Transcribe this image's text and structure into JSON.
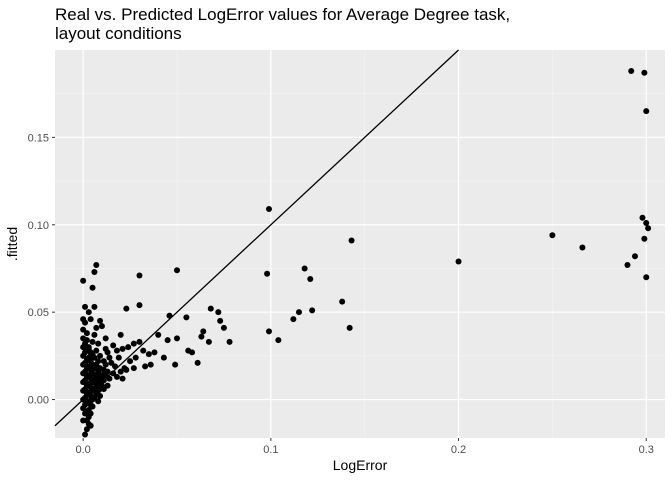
{
  "chart_data": {
    "type": "scatter",
    "title_line1": "Real vs. Predicted LogError values for Average Degree task,",
    "title_line2": "layout conditions",
    "xlabel": "LogError",
    "ylabel": ".fitted",
    "xlim": [
      -0.015,
      0.31
    ],
    "ylim": [
      -0.022,
      0.2
    ],
    "x_ticks": [
      0.0,
      0.1,
      0.2,
      0.3
    ],
    "x_tick_labels": [
      "0.0",
      "0.1",
      "0.2",
      "0.3"
    ],
    "y_ticks": [
      0.0,
      0.05,
      0.1,
      0.15
    ],
    "y_tick_labels": [
      "0.00",
      "0.05",
      "0.10",
      "0.15"
    ],
    "grid": true,
    "colors": {
      "panel": "#ebebeb",
      "grid_major": "#ffffff",
      "point": "#000000",
      "line": "#000000"
    },
    "reference_line": {
      "slope": 1,
      "intercept": 0
    },
    "points": [
      [
        0.292,
        0.188
      ],
      [
        0.299,
        0.187
      ],
      [
        0.3,
        0.165
      ],
      [
        0.099,
        0.109
      ],
      [
        0.298,
        0.104
      ],
      [
        0.3,
        0.101
      ],
      [
        0.301,
        0.098
      ],
      [
        0.25,
        0.094
      ],
      [
        0.143,
        0.091
      ],
      [
        0.299,
        0.092
      ],
      [
        0.266,
        0.087
      ],
      [
        0.294,
        0.082
      ],
      [
        0.29,
        0.077
      ],
      [
        0.2,
        0.079
      ],
      [
        0.0,
        0.068
      ],
      [
        0.007,
        0.077
      ],
      [
        0.006,
        0.073
      ],
      [
        0.03,
        0.071
      ],
      [
        0.05,
        0.074
      ],
      [
        0.098,
        0.072
      ],
      [
        0.118,
        0.075
      ],
      [
        0.121,
        0.069
      ],
      [
        0.3,
        0.07
      ],
      [
        0.005,
        0.064
      ],
      [
        0.001,
        0.053
      ],
      [
        0.006,
        0.053
      ],
      [
        0.023,
        0.052
      ],
      [
        0.03,
        0.054
      ],
      [
        0.046,
        0.048
      ],
      [
        0.055,
        0.047
      ],
      [
        0.068,
        0.052
      ],
      [
        0.072,
        0.05
      ],
      [
        0.115,
        0.05
      ],
      [
        0.122,
        0.051
      ],
      [
        0.138,
        0.056
      ],
      [
        0.112,
        0.046
      ],
      [
        0.073,
        0.045
      ],
      [
        0.064,
        0.039
      ],
      [
        0.075,
        0.041
      ],
      [
        0.078,
        0.033
      ],
      [
        0.099,
        0.039
      ],
      [
        0.104,
        0.034
      ],
      [
        0.142,
        0.041
      ],
      [
        0.04,
        0.037
      ],
      [
        0.045,
        0.034
      ],
      [
        0.043,
        0.024
      ],
      [
        0.05,
        0.035
      ],
      [
        0.056,
        0.028
      ],
      [
        0.058,
        0.027
      ],
      [
        0.063,
        0.036
      ],
      [
        0.067,
        0.033
      ],
      [
        0.061,
        0.021
      ],
      [
        0.049,
        0.02
      ],
      [
        0.035,
        0.026
      ],
      [
        0.038,
        0.027
      ],
      [
        0.036,
        0.02
      ],
      [
        0.032,
        0.028
      ],
      [
        0.03,
        0.033
      ],
      [
        0.027,
        0.032
      ],
      [
        0.025,
        0.022
      ],
      [
        0.022,
        0.018
      ],
      [
        0.019,
        0.024
      ],
      [
        0.02,
        0.037
      ],
      [
        0.016,
        0.031
      ],
      [
        0.013,
        0.027
      ],
      [
        0.012,
        0.035
      ],
      [
        0.015,
        0.021
      ],
      [
        0.01,
        0.014
      ],
      [
        0.01,
        0.008
      ],
      [
        0.008,
        0.005
      ],
      [
        0.009,
        0.045
      ],
      [
        0.01,
        0.042
      ],
      [
        0.004,
        0.046
      ],
      [
        0.001,
        0.044
      ],
      [
        0.002,
        0.038
      ],
      [
        0.003,
        0.03
      ],
      [
        0.004,
        0.025
      ],
      [
        0.0,
        0.04
      ],
      [
        0.0,
        0.035
      ],
      [
        0.0,
        0.03
      ],
      [
        0.0,
        0.025
      ],
      [
        0.0,
        0.02
      ],
      [
        0.0,
        0.015
      ],
      [
        0.0,
        0.01
      ],
      [
        0.0,
        0.005
      ],
      [
        0.0,
        0.0
      ],
      [
        0.0,
        -0.005
      ],
      [
        0.001,
        0.032
      ],
      [
        0.001,
        0.027
      ],
      [
        0.001,
        0.021
      ],
      [
        0.001,
        0.016
      ],
      [
        0.001,
        0.011
      ],
      [
        0.001,
        0.006
      ],
      [
        0.001,
        0.001
      ],
      [
        0.001,
        -0.003
      ],
      [
        0.001,
        -0.008
      ],
      [
        0.002,
        0.034
      ],
      [
        0.002,
        0.028
      ],
      [
        0.002,
        0.023
      ],
      [
        0.002,
        0.018
      ],
      [
        0.002,
        0.013
      ],
      [
        0.002,
        0.008
      ],
      [
        0.002,
        0.003
      ],
      [
        0.002,
        -0.002
      ],
      [
        0.002,
        -0.007
      ],
      [
        0.002,
        -0.012
      ],
      [
        0.002,
        -0.017
      ],
      [
        0.003,
        0.029
      ],
      [
        0.003,
        0.024
      ],
      [
        0.003,
        0.019
      ],
      [
        0.003,
        0.014
      ],
      [
        0.003,
        0.009
      ],
      [
        0.003,
        0.004
      ],
      [
        0.003,
        -0.001
      ],
      [
        0.003,
        -0.006
      ],
      [
        0.003,
        -0.01
      ],
      [
        0.004,
        0.027
      ],
      [
        0.004,
        0.022
      ],
      [
        0.004,
        0.017
      ],
      [
        0.004,
        0.012
      ],
      [
        0.004,
        0.007
      ],
      [
        0.004,
        0.002
      ],
      [
        0.004,
        -0.003
      ],
      [
        0.004,
        -0.008
      ],
      [
        0.005,
        0.033
      ],
      [
        0.005,
        0.026
      ],
      [
        0.005,
        0.02
      ],
      [
        0.005,
        0.015
      ],
      [
        0.005,
        0.01
      ],
      [
        0.005,
        0.005
      ],
      [
        0.005,
        0.0
      ],
      [
        0.005,
        -0.004
      ],
      [
        0.006,
        0.024
      ],
      [
        0.006,
        0.018
      ],
      [
        0.006,
        0.012
      ],
      [
        0.006,
        0.006
      ],
      [
        0.006,
        0.001
      ],
      [
        0.007,
        0.028
      ],
      [
        0.007,
        0.02
      ],
      [
        0.007,
        0.014
      ],
      [
        0.007,
        0.008
      ],
      [
        0.007,
        0.003
      ],
      [
        0.008,
        0.032
      ],
      [
        0.008,
        0.022
      ],
      [
        0.008,
        0.016
      ],
      [
        0.008,
        0.01
      ],
      [
        0.009,
        0.025
      ],
      [
        0.009,
        0.018
      ],
      [
        0.009,
        0.012
      ],
      [
        0.009,
        0.006
      ],
      [
        0.011,
        0.022
      ],
      [
        0.011,
        0.017
      ],
      [
        0.011,
        0.011
      ],
      [
        0.012,
        0.02
      ],
      [
        0.012,
        0.014
      ],
      [
        0.013,
        0.016
      ],
      [
        0.014,
        0.012
      ],
      [
        0.016,
        0.015
      ],
      [
        0.018,
        0.013
      ],
      [
        0.02,
        0.016
      ],
      [
        0.021,
        0.012
      ],
      [
        0.023,
        0.017
      ],
      [
        0.017,
        0.019
      ],
      [
        0.014,
        0.024
      ],
      [
        0.012,
        0.029
      ],
      [
        0.018,
        0.028
      ],
      [
        0.021,
        0.029
      ],
      [
        0.024,
        0.03
      ],
      [
        0.028,
        0.024
      ],
      [
        0.027,
        0.018
      ],
      [
        0.033,
        0.019
      ],
      [
        0.006,
        0.037
      ],
      [
        0.007,
        0.041
      ],
      [
        0.003,
        0.05
      ],
      [
        0.0,
        -0.012
      ],
      [
        0.001,
        -0.02
      ],
      [
        0.003,
        -0.014
      ],
      [
        0.004,
        -0.015
      ],
      [
        0.0,
        0.046
      ],
      [
        0.011,
        0.006
      ],
      [
        0.013,
        0.008
      ],
      [
        0.009,
        0.002
      ],
      [
        0.008,
        -0.001
      ]
    ]
  }
}
